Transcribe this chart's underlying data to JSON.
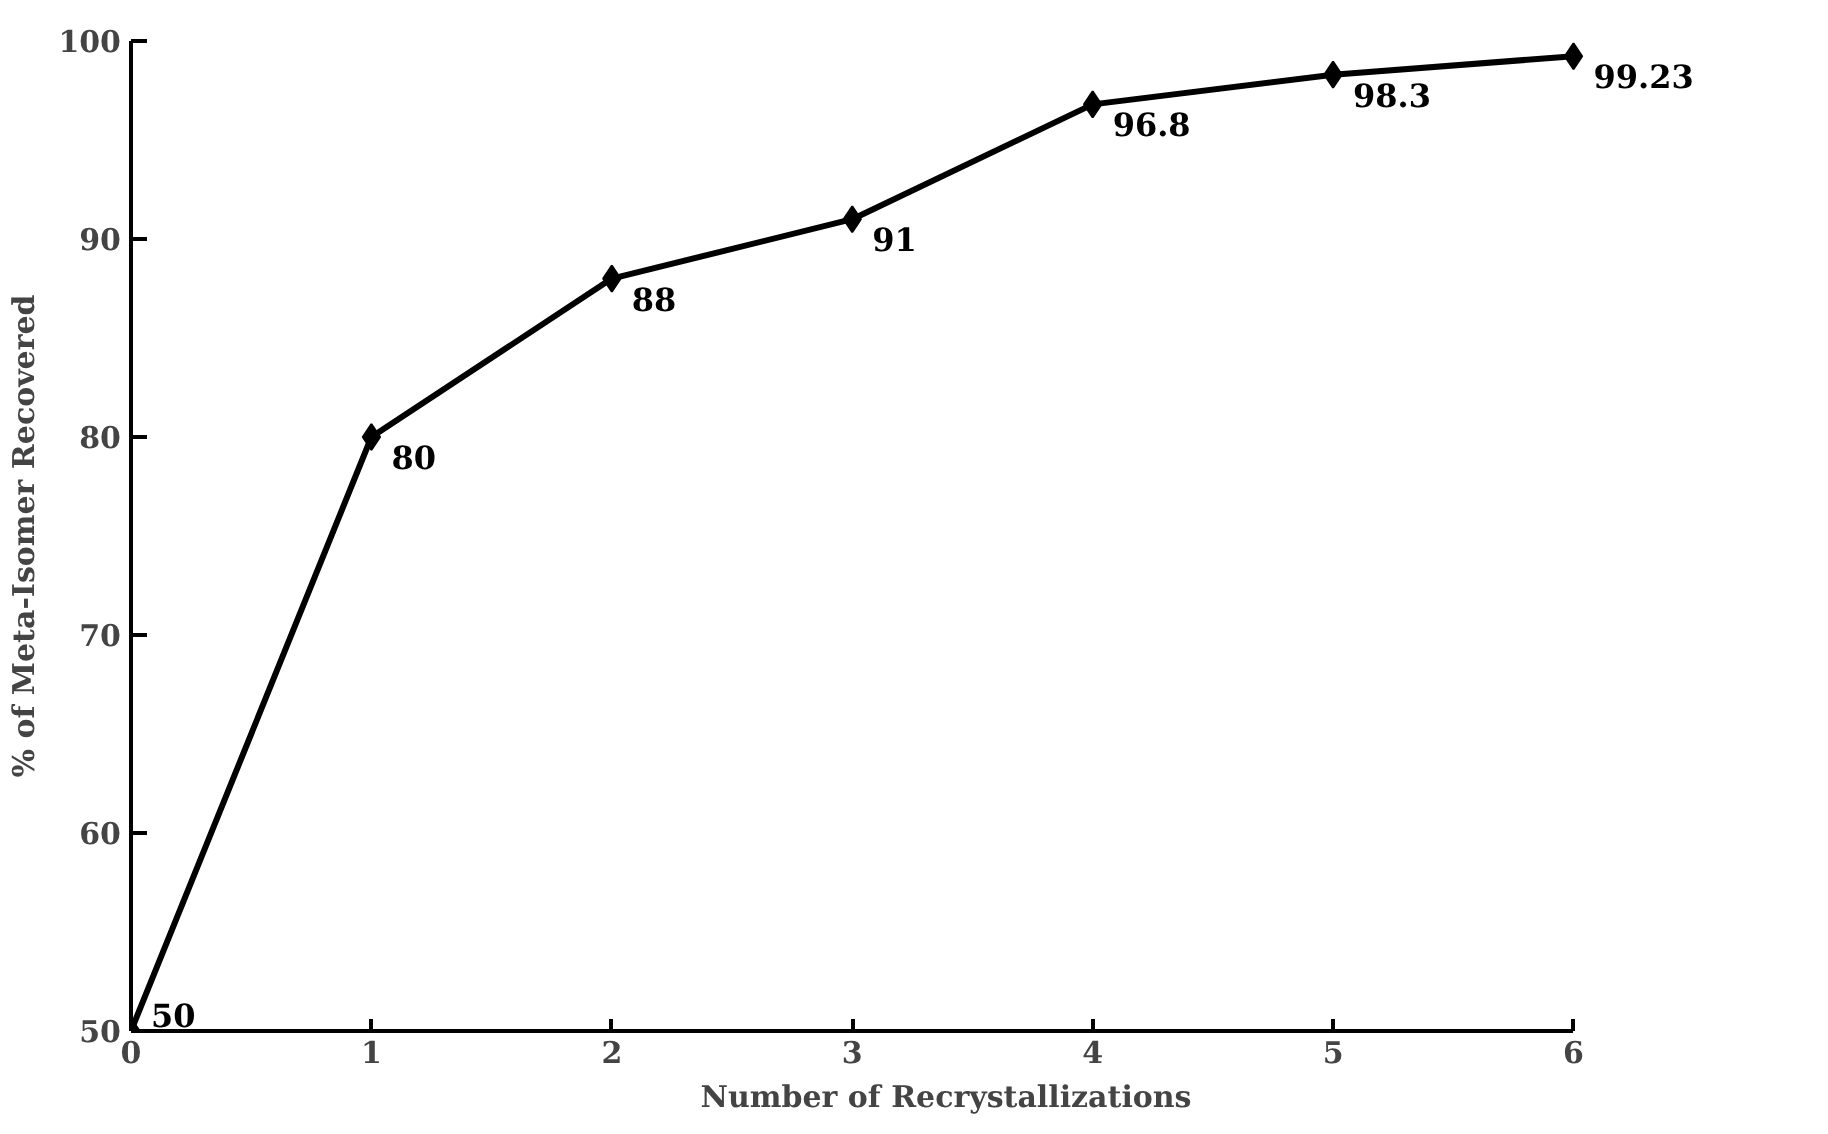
{
  "chart_data": {
    "type": "line",
    "xlabel": "Number of Recrystallizations",
    "ylabel": "% of Meta-Isomer Recovered",
    "x": [
      0,
      1,
      2,
      3,
      4,
      5,
      6
    ],
    "series": [
      {
        "color": "#000000",
        "values": [
          50,
          80,
          88,
          91,
          96.8,
          98.3,
          99.23
        ]
      }
    ],
    "xlim": [
      0,
      6
    ],
    "xticks": [
      0,
      1,
      2,
      3,
      4,
      5,
      6
    ],
    "ylim": [
      50,
      100
    ],
    "yticks": [
      50,
      60,
      70,
      80,
      90,
      100
    ],
    "grid": false,
    "marker": "diamond",
    "line_style": "solid",
    "data_labels": true
  }
}
